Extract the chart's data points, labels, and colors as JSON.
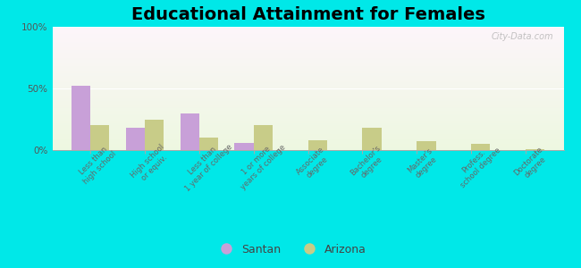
{
  "title": "Educational Attainment for Females",
  "categories": [
    "Less than\nhigh school",
    "High school\nor equiv.",
    "Less than\n1 year of college",
    "1 or more\nyears of college",
    "Associate\ndegree",
    "Bachelor's\ndegree",
    "Master's\ndegree",
    "Profess.\nschool degree",
    "Doctorate\ndegree"
  ],
  "santan": [
    52,
    18,
    30,
    6,
    0,
    0,
    0,
    0,
    0
  ],
  "arizona": [
    20,
    25,
    10,
    20,
    8,
    18,
    7,
    5,
    1
  ],
  "santan_color": "#c8a0d8",
  "arizona_color": "#c8cc88",
  "bg_cyan": "#00e8e8",
  "bar_width": 0.35,
  "ylim": [
    0,
    100
  ],
  "yticks": [
    0,
    50,
    100
  ],
  "ytick_labels": [
    "0%",
    "50%",
    "100%"
  ],
  "title_fontsize": 14,
  "legend_labels": [
    "Santan",
    "Arizona"
  ],
  "watermark": "City-Data.com"
}
